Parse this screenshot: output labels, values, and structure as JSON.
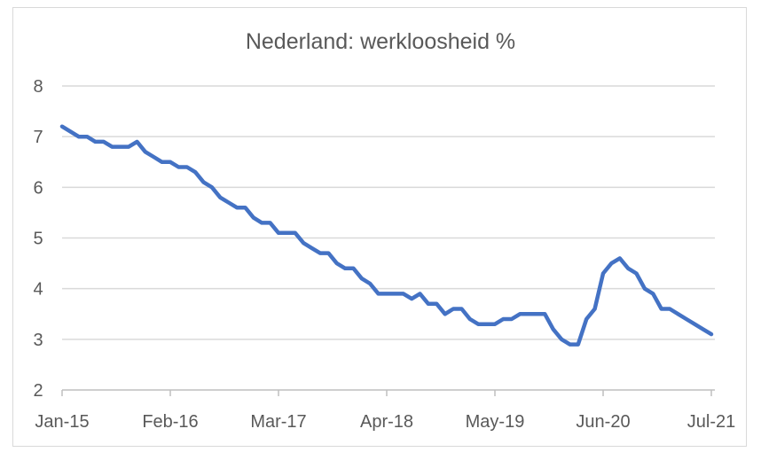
{
  "chart_data": {
    "type": "line",
    "title": "Nederland: werkloosheid %",
    "xlabel": "",
    "ylabel": "",
    "ylim": [
      2,
      8
    ],
    "yticks": [
      "2",
      "3",
      "4",
      "5",
      "6",
      "7",
      "8"
    ],
    "xtick_labels": [
      "Jan-15",
      "Feb-16",
      "Mar-17",
      "Apr-18",
      "May-19",
      "Jun-20",
      "Jul-21"
    ],
    "grid": true,
    "legend": "none",
    "series_color": "#4472c4",
    "x_start": "2015-01",
    "values": [
      7.2,
      7.1,
      7.0,
      7.0,
      6.9,
      6.9,
      6.8,
      6.8,
      6.8,
      6.9,
      6.7,
      6.6,
      6.5,
      6.5,
      6.4,
      6.4,
      6.3,
      6.1,
      6.0,
      5.8,
      5.7,
      5.6,
      5.6,
      5.4,
      5.3,
      5.3,
      5.1,
      5.1,
      5.1,
      4.9,
      4.8,
      4.7,
      4.7,
      4.5,
      4.4,
      4.4,
      4.2,
      4.1,
      3.9,
      3.9,
      3.9,
      3.9,
      3.8,
      3.9,
      3.7,
      3.7,
      3.5,
      3.6,
      3.6,
      3.4,
      3.3,
      3.3,
      3.3,
      3.4,
      3.4,
      3.5,
      3.5,
      3.5,
      3.5,
      3.2,
      3.0,
      2.9,
      2.9,
      3.4,
      3.6,
      4.3,
      4.5,
      4.6,
      4.4,
      4.3,
      4.0,
      3.9,
      3.6,
      3.6,
      3.5,
      3.4,
      3.3,
      3.2,
      3.1
    ]
  }
}
